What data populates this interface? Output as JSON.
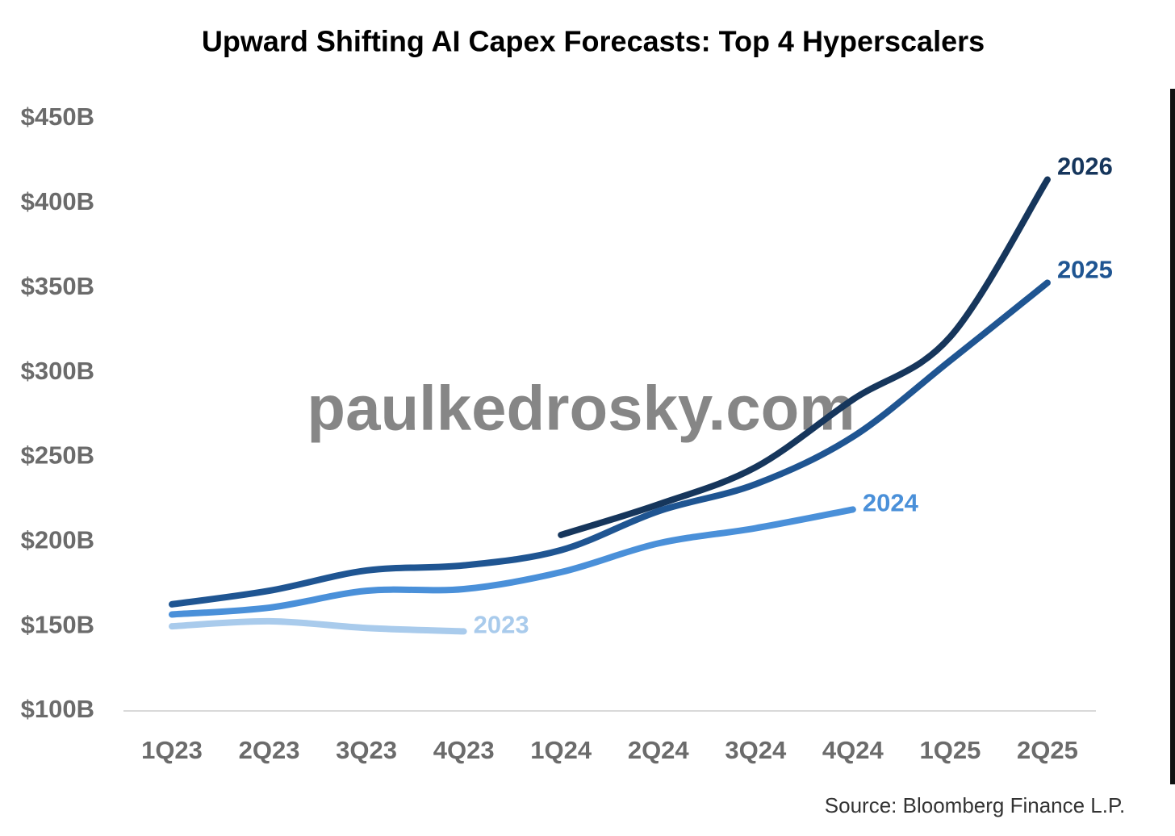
{
  "chart_data": {
    "type": "line",
    "title": "Upward Shifting AI Capex Forecasts: Top 4 Hyperscalers",
    "watermark": "paulkedrosky.com",
    "source": "Source: Bloomberg Finance L.P.",
    "categories": [
      "1Q23",
      "2Q23",
      "3Q23",
      "4Q23",
      "1Q24",
      "2Q24",
      "3Q24",
      "4Q24",
      "1Q25",
      "2Q25"
    ],
    "series": [
      {
        "name": "2023",
        "color": "#a9cbec",
        "values": [
          150,
          153,
          149,
          147,
          null,
          null,
          null,
          null,
          null,
          null
        ]
      },
      {
        "name": "2024",
        "color": "#4a90d9",
        "values": [
          157,
          161,
          171,
          172,
          182,
          199,
          208,
          219,
          null,
          null
        ]
      },
      {
        "name": "2025",
        "color": "#1f5592",
        "values": [
          163,
          171,
          183,
          186,
          195,
          218,
          234,
          262,
          307,
          353
        ]
      },
      {
        "name": "2026",
        "color": "#16365c",
        "values": [
          null,
          null,
          null,
          null,
          204,
          222,
          244,
          284,
          321,
          414
        ]
      }
    ],
    "ylim": [
      100,
      450
    ],
    "yticks": [
      {
        "value": 100,
        "label": "$100B"
      },
      {
        "value": 150,
        "label": "$150B"
      },
      {
        "value": 200,
        "label": "$200B"
      },
      {
        "value": 250,
        "label": "$250B"
      },
      {
        "value": 300,
        "label": "$300B"
      },
      {
        "value": 350,
        "label": "$350B"
      },
      {
        "value": 400,
        "label": "$400B"
      },
      {
        "value": 450,
        "label": "$450B"
      }
    ],
    "grid": false
  }
}
